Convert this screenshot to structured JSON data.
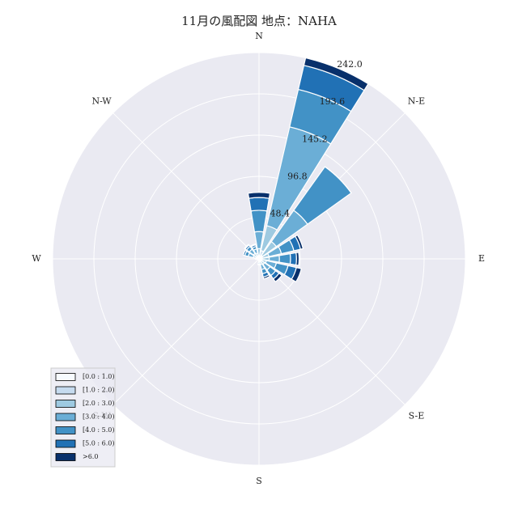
{
  "chart_data": {
    "type": "windrose",
    "title": "11月の風配図 地点：NAHA",
    "categories": [
      "N",
      null,
      "N-E",
      null,
      "E",
      null,
      "S-E",
      null,
      "S",
      null,
      "S-W",
      null,
      "W",
      null,
      "N-W",
      null
    ],
    "series": [
      {
        "name": "[0.0 : 1.0)",
        "color": "#f7fbff",
        "values": [
          1,
          2,
          1,
          1,
          1,
          1,
          1,
          1,
          1,
          0,
          0,
          0,
          1,
          1,
          1,
          1
        ]
      },
      {
        "name": "[1.0 : 2.0)",
        "color": "#c6dbef",
        "values": [
          3,
          8,
          4,
          3,
          3,
          2,
          2,
          2,
          1,
          0,
          0,
          0,
          1,
          2,
          2,
          2
        ]
      },
      {
        "name": "[2.0 : 3.0)",
        "color": "#9ecae1",
        "values": [
          8,
          30,
          20,
          8,
          8,
          6,
          5,
          4,
          2,
          0,
          0,
          0,
          1,
          4,
          5,
          4
        ]
      },
      {
        "name": "[3.0 : 4.0)",
        "color": "#6baed6",
        "values": [
          20,
          119,
          45,
          15,
          12,
          12,
          8,
          6,
          2,
          0,
          0,
          0,
          1,
          6,
          6,
          5
        ]
      },
      {
        "name": "[4.0 : 5.0)",
        "color": "#4292c6",
        "values": [
          25,
          45,
          63,
          15,
          13,
          14,
          8,
          5,
          1,
          0,
          0,
          0,
          0,
          4,
          4,
          3
        ]
      },
      {
        "name": "[5.0 : 6.0)",
        "color": "#2171b5",
        "values": [
          15,
          29,
          0,
          8,
          7,
          10,
          5,
          4,
          0,
          0,
          0,
          0,
          0,
          2,
          2,
          2
        ]
      },
      {
        "name": ">6.0",
        "color": "#08306b",
        "values": [
          6,
          9,
          0,
          3,
          3,
          6,
          4,
          2,
          0,
          0,
          0,
          0,
          0,
          0,
          1,
          1
        ]
      }
    ],
    "rlim": [
      0,
      242
    ],
    "rticks": [
      48.4,
      96.8,
      145.2,
      193.6,
      {
        "value": 242,
        "label": "242.0"
      }
    ],
    "grid": true,
    "legend": "lower-left"
  }
}
